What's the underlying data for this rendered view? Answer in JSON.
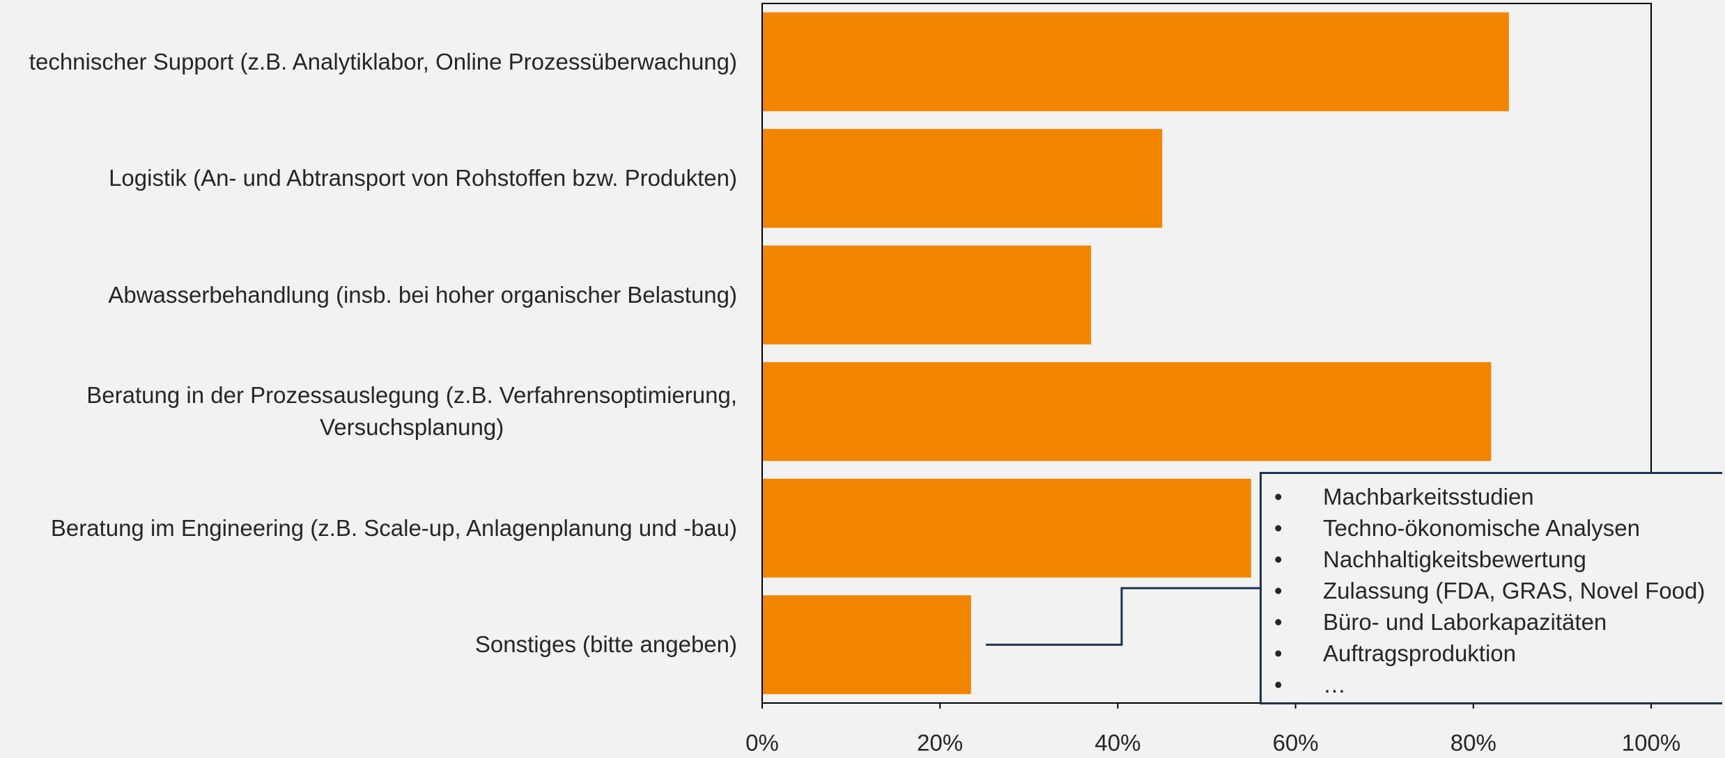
{
  "chart_data": {
    "type": "bar",
    "orientation": "horizontal",
    "categories": [
      "technischer Support (z.B. Analytiklabor, Online Prozessüberwachung)",
      "Logistik (An- und Abtransport von Rohstoffen bzw. Produkten)",
      "Abwasserbehandlung (insb. bei hoher organischer Belastung)",
      "Beratung in der Prozessauslegung (z.B. Verfahrensoptimierung,\nVersuchsplanung)",
      "Beratung im Engineering (z.B. Scale-up, Anlagenplanung und -bau)",
      "Sonstiges (bitte angeben)"
    ],
    "values": [
      84,
      45,
      37,
      82,
      55,
      23.5
    ],
    "color": "#f28500",
    "xlim": [
      0,
      100
    ],
    "xticks": [
      {
        "value": 0,
        "label": "0%"
      },
      {
        "value": 20,
        "label": "20%"
      },
      {
        "value": 40,
        "label": "40%"
      },
      {
        "value": 60,
        "label": "60%"
      },
      {
        "value": 80,
        "label": "80%"
      },
      {
        "value": 100,
        "label": "100%"
      }
    ],
    "annotation_items": [
      "Machbarkeitsstudien",
      "Techno-ökonomische Analysen",
      "Nachhaltigkeitsbewertung",
      "Zulassung (FDA, GRAS, Novel Food)",
      "Büro- und Laborkapazitäten",
      "Auftragsproduktion",
      "…"
    ]
  }
}
